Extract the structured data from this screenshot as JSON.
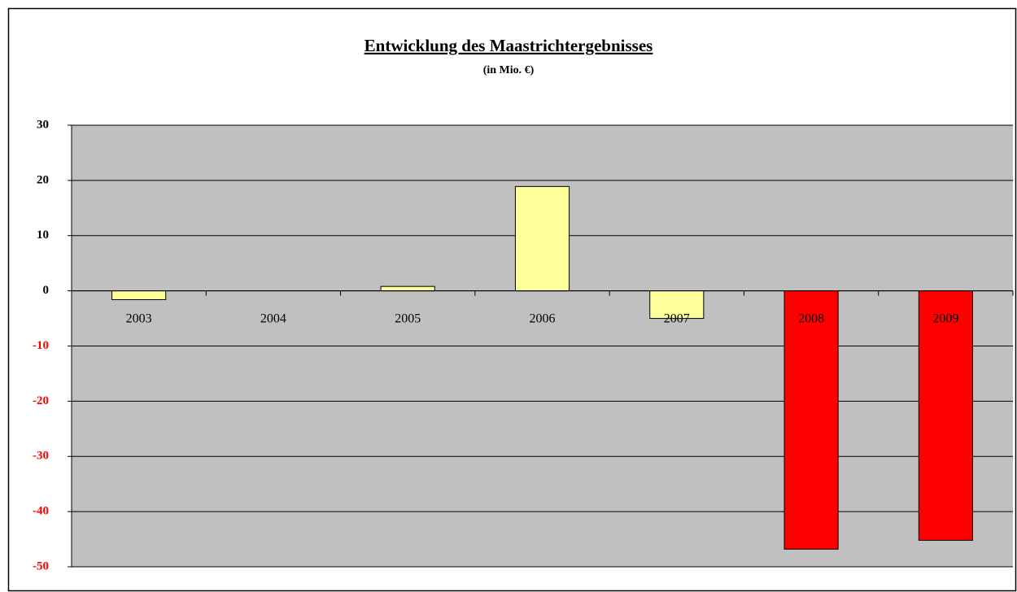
{
  "chart_data": {
    "type": "bar",
    "title": "Entwicklung des Maastrichtergebnisses",
    "subtitle": "(in Mio. €)",
    "categories": [
      "2003",
      "2004",
      "2005",
      "2006",
      "2007",
      "2008",
      "2009"
    ],
    "values": [
      -1.6,
      0,
      0.8,
      18.9,
      -5.0,
      -46.8,
      -45.2
    ],
    "colors": [
      "#ffff99",
      "#ffff99",
      "#ffff99",
      "#ffff99",
      "#ffff99",
      "#ff0000",
      "#ff0000"
    ],
    "ylim": [
      -50,
      30
    ],
    "yticks": [
      -50,
      -40,
      -30,
      -20,
      -10,
      0,
      10,
      20,
      30
    ],
    "grid": true,
    "plot_background": "#c0c0c0",
    "negative_tick_color": "#ff0000"
  }
}
